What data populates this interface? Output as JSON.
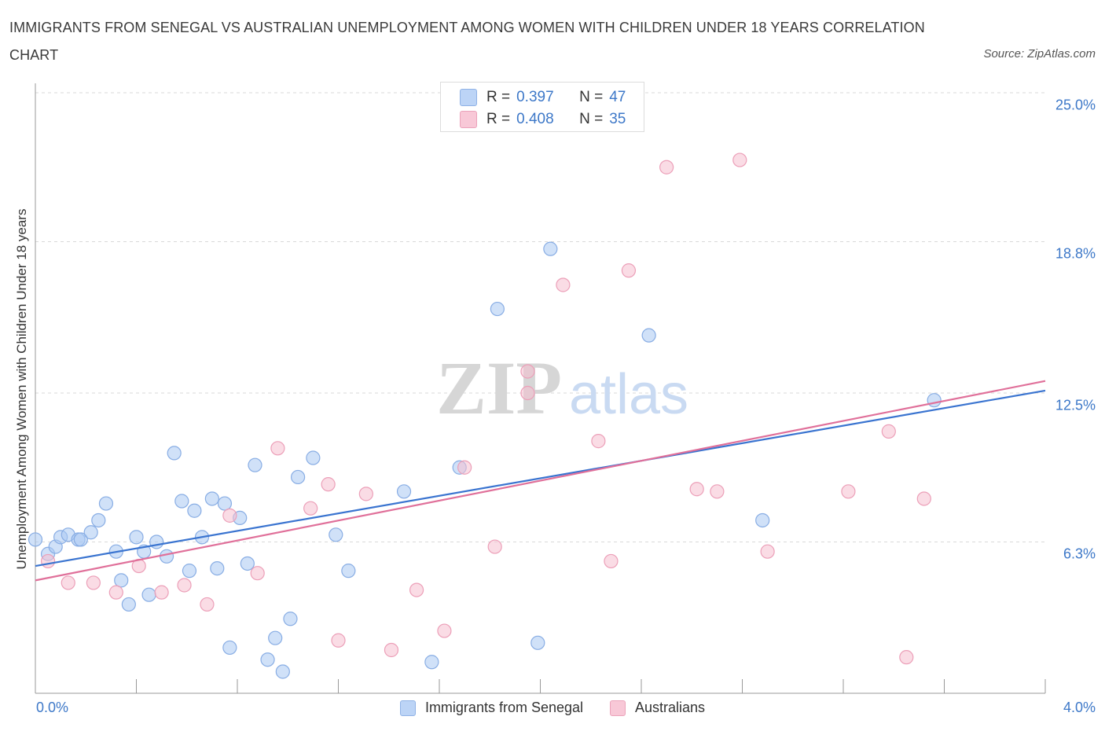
{
  "chart_data": {
    "type": "scatter",
    "title": "IMMIGRANTS FROM SENEGAL VS AUSTRALIAN UNEMPLOYMENT AMONG WOMEN WITH CHILDREN UNDER 18 YEARS CORRELATION CHART",
    "source": "Source: ZipAtlas.com",
    "xlabel": "",
    "ylabel": "Unemployment Among Women with Children Under 18 years",
    "xlim": [
      0,
      4.0
    ],
    "ylim": [
      0,
      25.0
    ],
    "x_tick_labels": [
      "0.0%",
      "4.0%"
    ],
    "y_ticks": [
      6.3,
      12.5,
      18.8,
      25.0
    ],
    "y_tick_labels": [
      "6.3%",
      "12.5%",
      "18.8%",
      "25.0%"
    ],
    "grid": true,
    "legend_position": "top-center",
    "watermark": "ZIPatlas",
    "series": [
      {
        "name": "Immigrants from Senegal",
        "color": "#a9c8f2",
        "line_color": "#3a74d0",
        "R": "0.397",
        "N": "47",
        "trend": [
          [
            0.0,
            5.3
          ],
          [
            4.0,
            12.6
          ]
        ],
        "points": [
          [
            0.0,
            6.4
          ],
          [
            0.05,
            5.8
          ],
          [
            0.08,
            6.1
          ],
          [
            0.1,
            6.5
          ],
          [
            0.13,
            6.6
          ],
          [
            0.17,
            6.4
          ],
          [
            0.18,
            6.4
          ],
          [
            0.22,
            6.7
          ],
          [
            0.25,
            7.2
          ],
          [
            0.28,
            7.9
          ],
          [
            0.32,
            5.9
          ],
          [
            0.34,
            4.7
          ],
          [
            0.37,
            3.7
          ],
          [
            0.4,
            6.5
          ],
          [
            0.43,
            5.9
          ],
          [
            0.45,
            4.1
          ],
          [
            0.48,
            6.3
          ],
          [
            0.52,
            5.7
          ],
          [
            0.55,
            10.0
          ],
          [
            0.58,
            8.0
          ],
          [
            0.61,
            5.1
          ],
          [
            0.63,
            7.6
          ],
          [
            0.66,
            6.5
          ],
          [
            0.7,
            8.1
          ],
          [
            0.72,
            5.2
          ],
          [
            0.75,
            7.9
          ],
          [
            0.77,
            1.9
          ],
          [
            0.81,
            7.3
          ],
          [
            0.84,
            5.4
          ],
          [
            0.87,
            9.5
          ],
          [
            0.92,
            1.4
          ],
          [
            0.95,
            2.3
          ],
          [
            0.98,
            0.9
          ],
          [
            1.01,
            3.1
          ],
          [
            1.04,
            9.0
          ],
          [
            1.1,
            9.8
          ],
          [
            1.19,
            6.6
          ],
          [
            1.24,
            5.1
          ],
          [
            1.46,
            8.4
          ],
          [
            1.57,
            1.3
          ],
          [
            1.68,
            9.4
          ],
          [
            1.83,
            16.0
          ],
          [
            1.99,
            2.1
          ],
          [
            2.04,
            18.5
          ],
          [
            2.43,
            14.9
          ],
          [
            2.88,
            7.2
          ],
          [
            3.56,
            12.2
          ]
        ]
      },
      {
        "name": "Australians",
        "color": "#f6bfd0",
        "line_color": "#e0709a",
        "R": "0.408",
        "N": "35",
        "trend": [
          [
            0.0,
            4.7
          ],
          [
            4.0,
            13.0
          ]
        ],
        "points": [
          [
            0.05,
            5.5
          ],
          [
            0.13,
            4.6
          ],
          [
            0.23,
            4.6
          ],
          [
            0.32,
            4.2
          ],
          [
            0.41,
            5.3
          ],
          [
            0.5,
            4.2
          ],
          [
            0.59,
            4.5
          ],
          [
            0.68,
            3.7
          ],
          [
            0.77,
            7.4
          ],
          [
            0.88,
            5.0
          ],
          [
            0.96,
            10.2
          ],
          [
            1.09,
            7.7
          ],
          [
            1.16,
            8.7
          ],
          [
            1.2,
            2.2
          ],
          [
            1.31,
            8.3
          ],
          [
            1.41,
            1.8
          ],
          [
            1.51,
            4.3
          ],
          [
            1.62,
            2.6
          ],
          [
            1.7,
            9.4
          ],
          [
            1.82,
            6.1
          ],
          [
            1.95,
            13.4
          ],
          [
            1.95,
            12.5
          ],
          [
            2.09,
            17.0
          ],
          [
            2.23,
            10.5
          ],
          [
            2.28,
            5.5
          ],
          [
            2.35,
            17.6
          ],
          [
            2.5,
            21.9
          ],
          [
            2.62,
            8.5
          ],
          [
            2.7,
            8.4
          ],
          [
            2.79,
            22.2
          ],
          [
            2.9,
            5.9
          ],
          [
            3.22,
            8.4
          ],
          [
            3.38,
            10.9
          ],
          [
            3.45,
            1.5
          ],
          [
            3.52,
            8.1
          ]
        ]
      }
    ]
  }
}
